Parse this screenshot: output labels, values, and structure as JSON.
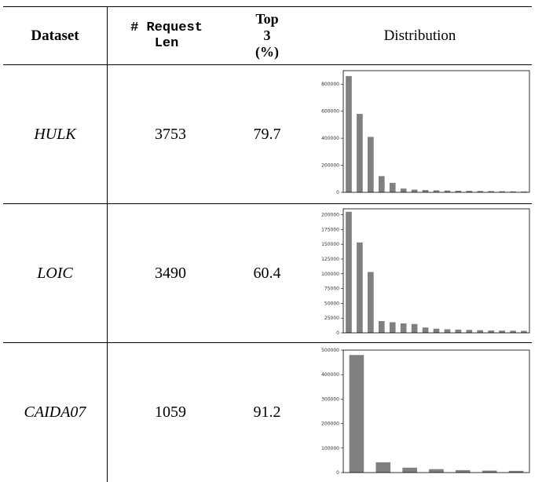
{
  "header": {
    "dataset": "Dataset",
    "request_len_line1": "# Request",
    "request_len_line2": "Len",
    "top3_line1": "Top",
    "top3_line2": "3",
    "top3_line3": "(%)",
    "distribution": "Distribution"
  },
  "rows": [
    {
      "dataset": "HULK",
      "request_len": "3753",
      "top3": "79.7"
    },
    {
      "dataset": "LOIC",
      "request_len": "3490",
      "top3": "60.4"
    },
    {
      "dataset": "CAIDA07",
      "request_len": "1059",
      "top3": "91.2"
    }
  ],
  "chart_data": [
    {
      "type": "bar",
      "ylim": [
        0,
        900000
      ],
      "yticks": [
        0,
        200000,
        400000,
        600000,
        800000
      ],
      "bar_color": "#808080",
      "values": [
        860000,
        580000,
        410000,
        120000,
        70000,
        28000,
        20000,
        17000,
        15000,
        13000,
        12000,
        11000,
        10000,
        9000,
        8000,
        7000,
        6000
      ]
    },
    {
      "type": "bar",
      "ylim": [
        0,
        210000
      ],
      "yticks": [
        0,
        25000,
        50000,
        75000,
        100000,
        125000,
        150000,
        175000,
        200000
      ],
      "bar_color": "#808080",
      "values": [
        205000,
        153000,
        103000,
        20000,
        18000,
        16000,
        15000,
        9000,
        7000,
        6000,
        5500,
        5000,
        4500,
        4000,
        3800,
        3600,
        3400
      ]
    },
    {
      "type": "bar",
      "ylim": [
        0,
        500000
      ],
      "yticks": [
        0,
        100000,
        200000,
        300000,
        400000,
        500000
      ],
      "bar_color": "#808080",
      "values": [
        480000,
        42000,
        20000,
        14000,
        10000,
        8000,
        7000
      ]
    }
  ]
}
